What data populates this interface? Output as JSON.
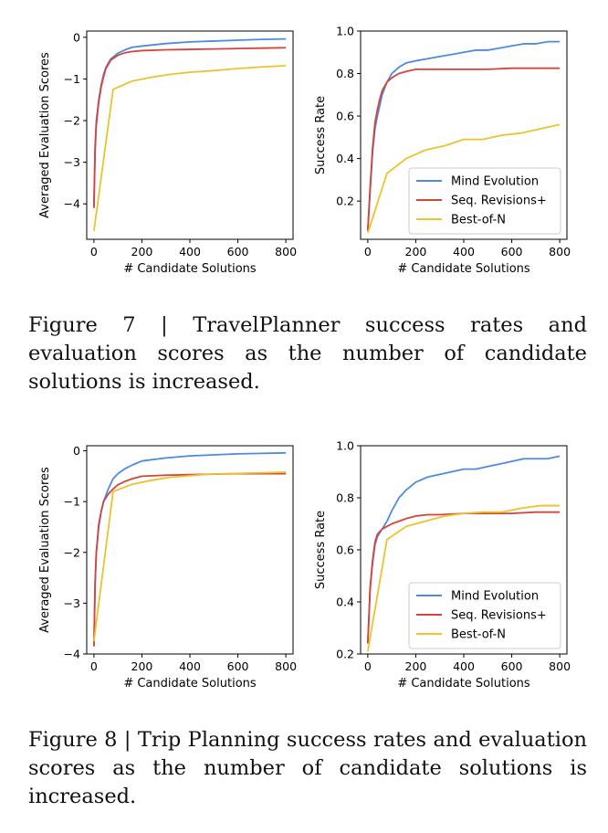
{
  "colors": {
    "mind_evolution": "#4e8ae0",
    "seq_revisions": "#d6433b",
    "best_of_n": "#eec22c"
  },
  "charts": [
    {
      "figure": "Figure 7",
      "panels": [
        {
          "type": "line",
          "title": "",
          "xlabel": "# Candidate Solutions",
          "ylabel": "Averaged Evaluation Scores",
          "xlim": [
            -30,
            830
          ],
          "ylim": [
            -4.85,
            0.15
          ],
          "xticks": [
            0,
            200,
            400,
            600,
            800
          ],
          "yticks": [
            0,
            -1,
            -2,
            -3,
            -4
          ],
          "xtick_labels": [
            "0",
            "200",
            "400",
            "600",
            "800"
          ],
          "ytick_labels": [
            "0",
            "−1",
            "−2",
            "−3",
            "−4"
          ],
          "legend": null,
          "series": [
            {
              "key": "mind_evolution",
              "x": [
                0,
                5,
                10,
                20,
                30,
                40,
                50,
                70,
                100,
                130,
                160,
                200,
                300,
                400,
                500,
                600,
                700,
                800
              ],
              "y": [
                -4.05,
                -2.6,
                -2.0,
                -1.5,
                -1.15,
                -0.9,
                -0.72,
                -0.52,
                -0.38,
                -0.3,
                -0.24,
                -0.21,
                -0.15,
                -0.11,
                -0.09,
                -0.07,
                -0.05,
                -0.04
              ]
            },
            {
              "key": "seq_revisions",
              "x": [
                0,
                5,
                10,
                20,
                30,
                40,
                50,
                70,
                100,
                130,
                160,
                200,
                300,
                400,
                500,
                600,
                700,
                800
              ],
              "y": [
                -4.1,
                -2.7,
                -2.1,
                -1.55,
                -1.2,
                -0.95,
                -0.75,
                -0.55,
                -0.43,
                -0.37,
                -0.34,
                -0.32,
                -0.3,
                -0.29,
                -0.28,
                -0.27,
                -0.26,
                -0.25
              ]
            },
            {
              "key": "best_of_n",
              "x": [
                0,
                80,
                160,
                250,
                330,
                400,
                500,
                600,
                700,
                800
              ],
              "y": [
                -4.65,
                -1.25,
                -1.05,
                -0.95,
                -0.88,
                -0.84,
                -0.8,
                -0.75,
                -0.71,
                -0.68
              ]
            }
          ]
        },
        {
          "type": "line",
          "title": "",
          "xlabel": "# Candidate Solutions",
          "ylabel": "Success Rate",
          "xlim": [
            -30,
            830
          ],
          "ylim": [
            0.02,
            1.0
          ],
          "xticks": [
            0,
            200,
            400,
            600,
            800
          ],
          "yticks": [
            0.2,
            0.4,
            0.6,
            0.8,
            1.0
          ],
          "xtick_labels": [
            "0",
            "200",
            "400",
            "600",
            "800"
          ],
          "ytick_labels": [
            "0.2",
            "0.4",
            "0.6",
            "0.8",
            "1.0"
          ],
          "legend": "bottom-right",
          "series": [
            {
              "key": "mind_evolution",
              "x": [
                0,
                10,
                20,
                30,
                40,
                50,
                60,
                80,
                100,
                130,
                160,
                200,
                250,
                300,
                350,
                400,
                450,
                500,
                550,
                600,
                650,
                700,
                750,
                800
              ],
              "y": [
                0.06,
                0.25,
                0.43,
                0.54,
                0.6,
                0.65,
                0.7,
                0.76,
                0.8,
                0.83,
                0.85,
                0.86,
                0.87,
                0.88,
                0.89,
                0.9,
                0.91,
                0.91,
                0.92,
                0.93,
                0.94,
                0.94,
                0.95,
                0.95
              ]
            },
            {
              "key": "seq_revisions",
              "x": [
                0,
                10,
                20,
                30,
                40,
                50,
                60,
                80,
                100,
                130,
                160,
                200,
                250,
                300,
                400,
                500,
                600,
                700,
                800
              ],
              "y": [
                0.06,
                0.27,
                0.45,
                0.57,
                0.63,
                0.68,
                0.72,
                0.76,
                0.78,
                0.8,
                0.81,
                0.82,
                0.82,
                0.82,
                0.82,
                0.82,
                0.825,
                0.825,
                0.825
              ]
            },
            {
              "key": "best_of_n",
              "x": [
                0,
                80,
                160,
                240,
                320,
                400,
                480,
                560,
                640,
                720,
                800
              ],
              "y": [
                0.05,
                0.33,
                0.4,
                0.44,
                0.46,
                0.49,
                0.49,
                0.51,
                0.52,
                0.54,
                0.56
              ]
            }
          ]
        }
      ]
    },
    {
      "figure": "Figure 8",
      "panels": [
        {
          "type": "line",
          "title": "",
          "xlabel": "# Candidate Solutions",
          "ylabel": "Averaged Evaluation Scores",
          "xlim": [
            -30,
            830
          ],
          "ylim": [
            -4.0,
            0.1
          ],
          "xticks": [
            0,
            200,
            400,
            600,
            800
          ],
          "yticks": [
            0,
            -1,
            -2,
            -3,
            -4
          ],
          "xtick_labels": [
            "0",
            "200",
            "400",
            "600",
            "800"
          ],
          "ytick_labels": [
            "0",
            "−1",
            "−2",
            "−3",
            "−4"
          ],
          "legend": null,
          "series": [
            {
              "key": "mind_evolution",
              "x": [
                0,
                5,
                10,
                20,
                30,
                40,
                60,
                80,
                100,
                130,
                160,
                200,
                300,
                400,
                500,
                600,
                700,
                800
              ],
              "y": [
                -3.85,
                -2.6,
                -2.0,
                -1.5,
                -1.2,
                -1.0,
                -0.75,
                -0.55,
                -0.45,
                -0.35,
                -0.28,
                -0.2,
                -0.14,
                -0.1,
                -0.08,
                -0.06,
                -0.05,
                -0.04
              ]
            },
            {
              "key": "seq_revisions",
              "x": [
                0,
                5,
                10,
                20,
                30,
                40,
                60,
                80,
                100,
                130,
                160,
                200,
                300,
                400,
                500,
                600,
                700,
                800
              ],
              "y": [
                -3.85,
                -2.6,
                -2.0,
                -1.45,
                -1.2,
                -1.0,
                -0.85,
                -0.75,
                -0.67,
                -0.6,
                -0.55,
                -0.5,
                -0.48,
                -0.47,
                -0.46,
                -0.45,
                -0.45,
                -0.45
              ]
            },
            {
              "key": "best_of_n",
              "x": [
                0,
                80,
                160,
                240,
                320,
                400,
                480,
                560,
                640,
                720,
                800
              ],
              "y": [
                -3.75,
                -0.8,
                -0.66,
                -0.58,
                -0.52,
                -0.49,
                -0.46,
                -0.45,
                -0.44,
                -0.43,
                -0.42
              ]
            }
          ]
        },
        {
          "type": "line",
          "title": "",
          "xlabel": "# Candidate Solutions",
          "ylabel": "Success Rate",
          "xlim": [
            -30,
            830
          ],
          "ylim": [
            0.2,
            1.0
          ],
          "xticks": [
            0,
            200,
            400,
            600,
            800
          ],
          "yticks": [
            0.2,
            0.4,
            0.6,
            0.8,
            1.0
          ],
          "xtick_labels": [
            "0",
            "200",
            "400",
            "600",
            "800"
          ],
          "ytick_labels": [
            "0.2",
            "0.4",
            "0.6",
            "0.8",
            "1.0"
          ],
          "legend": "bottom-right",
          "series": [
            {
              "key": "mind_evolution",
              "x": [
                0,
                10,
                20,
                30,
                40,
                60,
                80,
                100,
                130,
                160,
                200,
                250,
                300,
                350,
                400,
                450,
                500,
                550,
                600,
                650,
                700,
                750,
                800
              ],
              "y": [
                0.24,
                0.45,
                0.55,
                0.62,
                0.65,
                0.68,
                0.71,
                0.75,
                0.8,
                0.83,
                0.86,
                0.88,
                0.89,
                0.9,
                0.91,
                0.91,
                0.92,
                0.93,
                0.94,
                0.95,
                0.95,
                0.95,
                0.96
              ]
            },
            {
              "key": "seq_revisions",
              "x": [
                0,
                10,
                20,
                30,
                40,
                60,
                80,
                100,
                130,
                160,
                200,
                250,
                300,
                400,
                500,
                600,
                700,
                800
              ],
              "y": [
                0.24,
                0.46,
                0.56,
                0.63,
                0.66,
                0.68,
                0.69,
                0.7,
                0.71,
                0.72,
                0.73,
                0.735,
                0.735,
                0.74,
                0.74,
                0.74,
                0.745,
                0.745
              ]
            },
            {
              "key": "best_of_n",
              "x": [
                0,
                80,
                160,
                240,
                320,
                400,
                480,
                560,
                640,
                720,
                800
              ],
              "y": [
                0.21,
                0.64,
                0.69,
                0.71,
                0.73,
                0.74,
                0.745,
                0.745,
                0.76,
                0.77,
                0.77
              ]
            }
          ]
        }
      ]
    }
  ],
  "legend_labels": {
    "mind_evolution": "Mind Evolution",
    "seq_revisions": "Seq. Revisions+",
    "best_of_n": "Best-of-N"
  },
  "captions": {
    "fig7": "Figure 7 | TravelPlanner success rates and evaluation scores as the number of candidate solutions is increased.",
    "fig8": "Figure 8 | Trip Planning success rates and evaluation scores as the number of candidate solutions is increased."
  }
}
